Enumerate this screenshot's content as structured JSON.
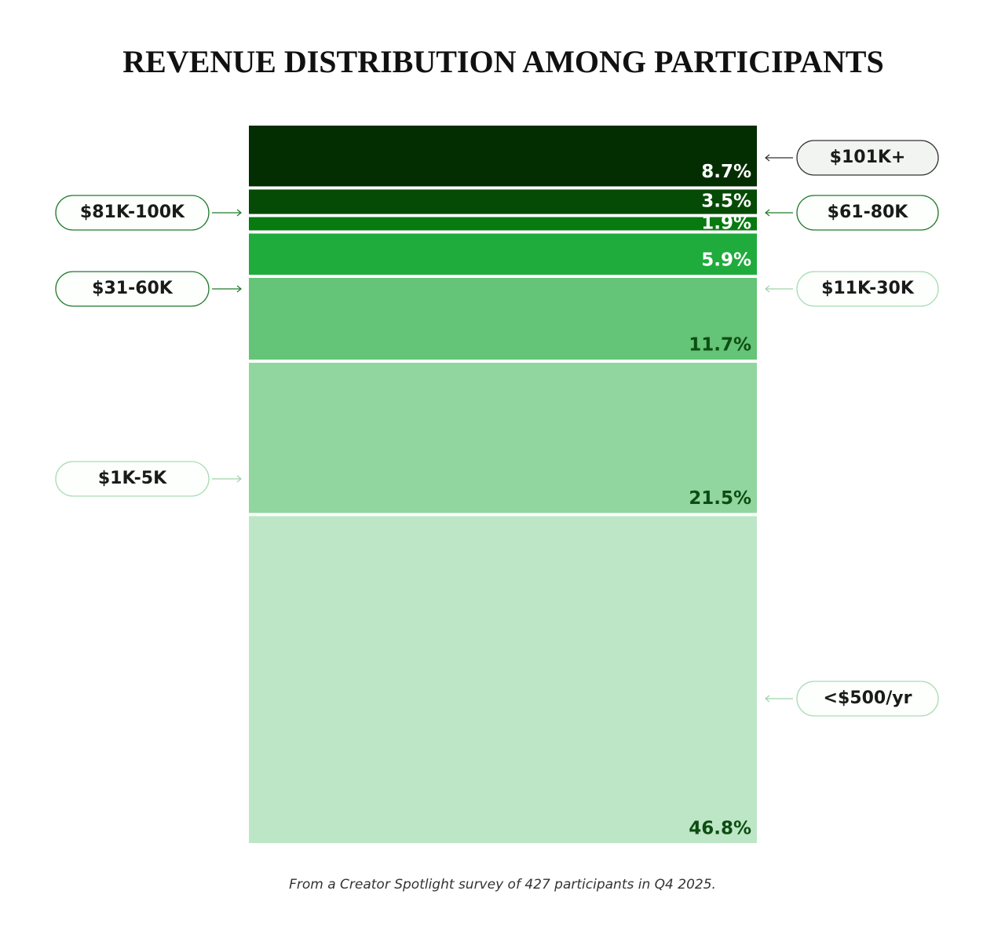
{
  "chart_data": {
    "type": "stacked-column",
    "title": "REVENUE DISTRIBUTION AMONG PARTICIPANTS",
    "categories": [
      "$101K+",
      "$81K-100K",
      "$61-80K",
      "$31-60K",
      "$11K-30K",
      "$1K-5K",
      "<$500/yr"
    ],
    "values": [
      8.7,
      3.5,
      1.9,
      5.9,
      11.7,
      21.5,
      46.8
    ],
    "value_labels": [
      "8.7%",
      "3.5%",
      "1.9%",
      "5.9%",
      "11.7%",
      "21.5%",
      "46.8%"
    ],
    "colors": [
      "#022e02",
      "#054a05",
      "#077a10",
      "#20ab3d",
      "#64c477",
      "#90d69e",
      "#bde6c6"
    ],
    "caption": "From a Creator Spotlight survey of 427 participants in Q4 2025."
  }
}
